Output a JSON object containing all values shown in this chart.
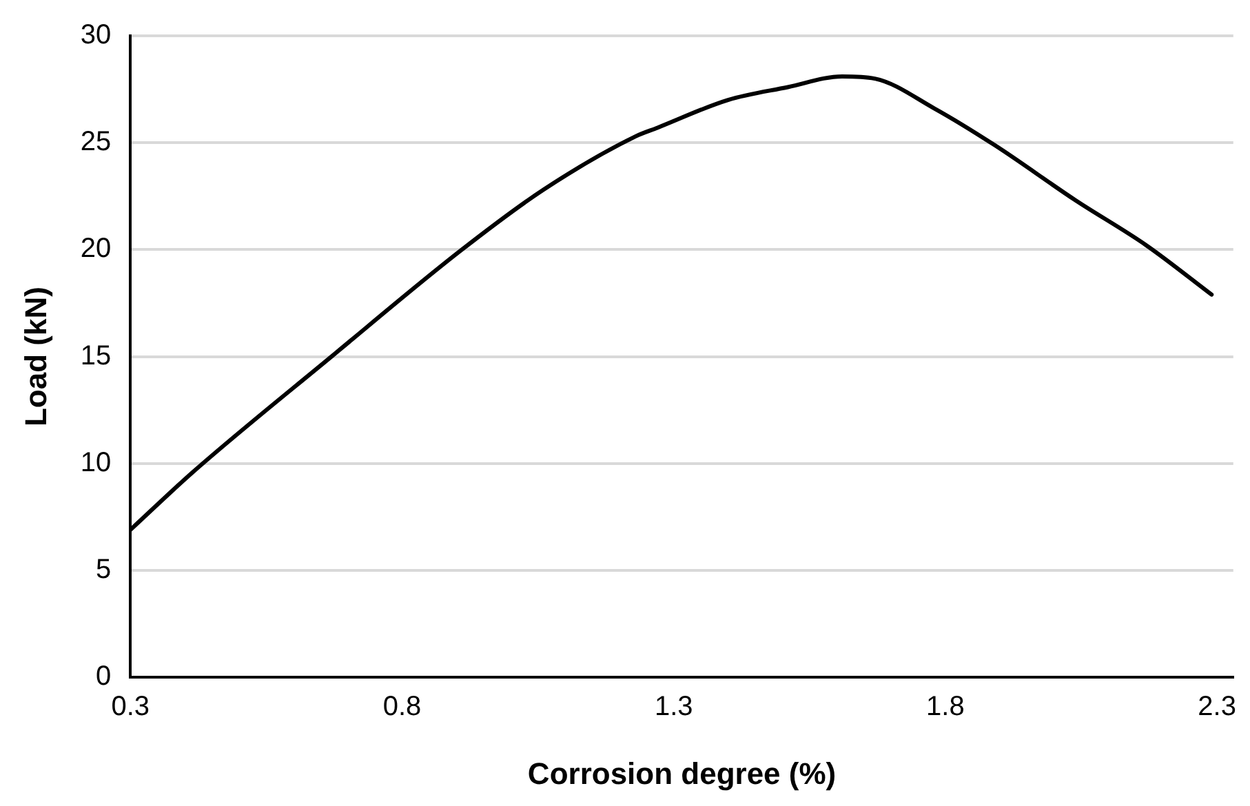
{
  "chart_data": {
    "type": "line",
    "xlabel": "Corrosion degree (%)",
    "ylabel": "Load (kN)",
    "x": [
      0.3,
      0.415,
      0.67,
      0.91,
      1.06,
      1.23,
      1.27,
      1.4,
      1.51,
      1.61,
      1.67,
      1.78,
      1.89,
      2.04,
      2.17,
      2.29
    ],
    "series": [
      {
        "color": "#000000",
        "values": [
          6.9,
          9.6,
          15.0,
          20.0,
          22.8,
          25.3,
          25.7,
          27.0,
          27.6,
          28.1,
          28.0,
          26.6,
          24.9,
          22.3,
          20.2,
          17.9
        ]
      }
    ],
    "xlim": [
      0.3,
      2.33
    ],
    "xticks": [
      0.3,
      0.8,
      1.3,
      1.8,
      2.3
    ],
    "ylim": [
      0,
      30
    ],
    "yticks": [
      0,
      5,
      10,
      15,
      20,
      25,
      30
    ],
    "grid": "y",
    "legend": false,
    "marker": "none",
    "line_style": "solid"
  }
}
